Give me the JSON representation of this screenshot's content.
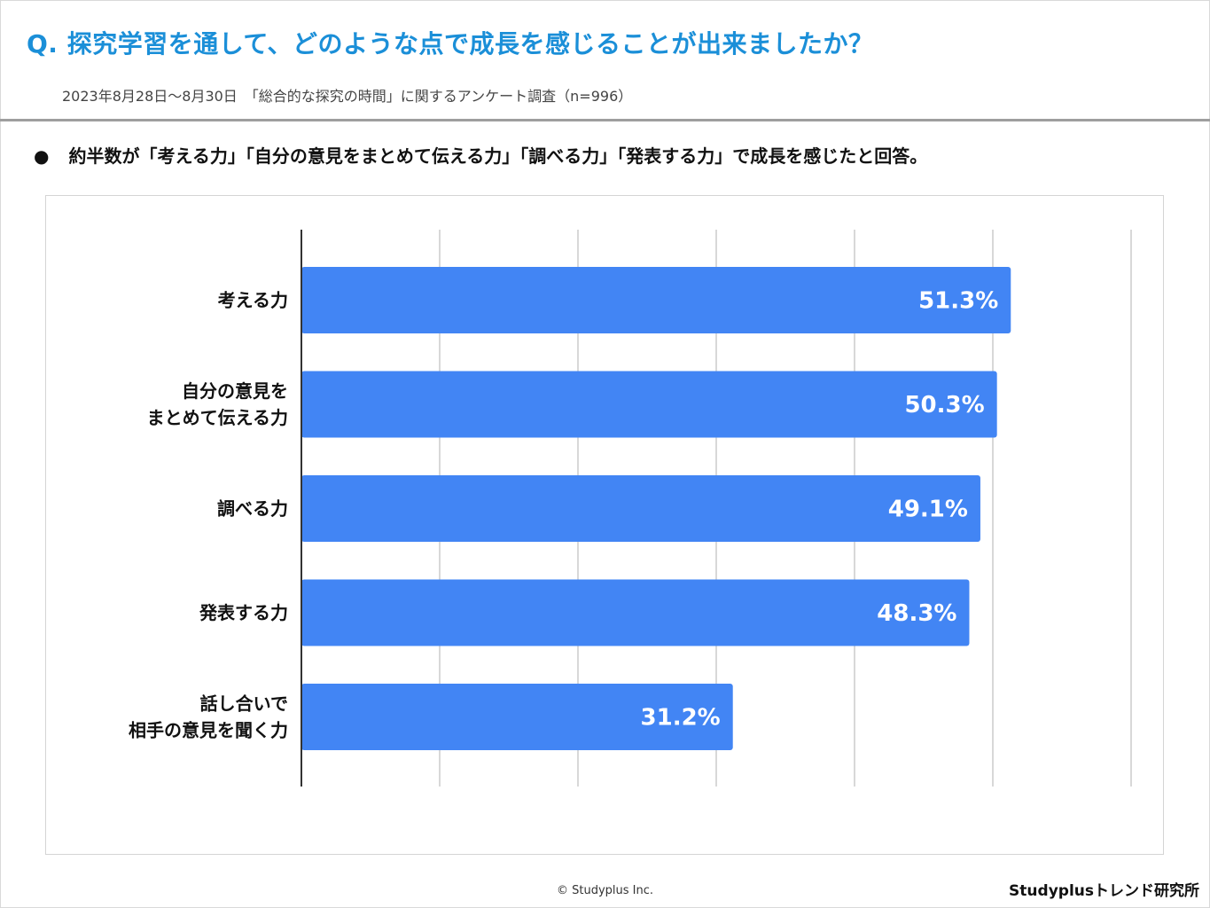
{
  "header": {
    "question": "Q. 探究学習を通して、どのような点で成長を感じることが出来ましたか？",
    "subtitle": "2023年8月28日～8月30日　「総合的な探究の時間」に関するアンケート調査（n=996）"
  },
  "summary": {
    "bullet": "●",
    "text": "約半数が「考える力」「自分の意見をまとめて伝える力」「調べる力」「発表する力」で成長を感じたと回答。"
  },
  "chart_data": {
    "type": "bar",
    "orientation": "horizontal",
    "categories": [
      [
        "考える力"
      ],
      [
        "自分の意見を",
        "まとめて伝える力"
      ],
      [
        "調べる力"
      ],
      [
        "発表する力"
      ],
      [
        "話し合いで",
        "相手の意見を聞く力"
      ]
    ],
    "values": [
      51.3,
      50.3,
      49.1,
      48.3,
      31.2
    ],
    "value_labels": [
      "51.3%",
      "50.3%",
      "49.1%",
      "48.3%",
      "31.2%"
    ],
    "xlim": [
      0,
      60
    ],
    "grid": true,
    "bar_color": "#4285f4",
    "gridline_color": "#cccccc"
  },
  "footer": {
    "copyright": "© Studyplus Inc.",
    "brand": "Studyplusトレンド研究所"
  }
}
